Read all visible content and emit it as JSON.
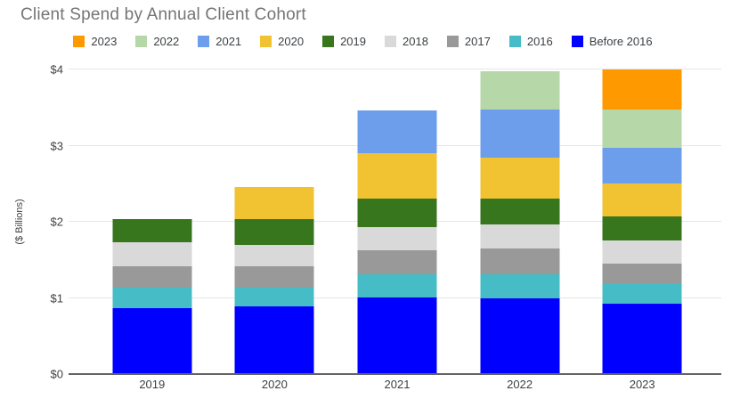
{
  "chart_data": {
    "type": "bar",
    "stacked": true,
    "title": "Client Spend by Annual Client Cohort",
    "xlabel": "",
    "ylabel": "($ Billions)",
    "categories": [
      "2019",
      "2020",
      "2021",
      "2022",
      "2023"
    ],
    "series": [
      {
        "name": "Before 2016",
        "color": "#0000FF",
        "values": [
          0.87,
          0.89,
          1.01,
          1.0,
          0.92
        ]
      },
      {
        "name": "2016",
        "color": "#46BDC6",
        "values": [
          0.26,
          0.25,
          0.3,
          0.31,
          0.27
        ]
      },
      {
        "name": "2017",
        "color": "#999999",
        "values": [
          0.29,
          0.28,
          0.32,
          0.34,
          0.26
        ]
      },
      {
        "name": "2018",
        "color": "#D9D9D9",
        "values": [
          0.31,
          0.28,
          0.3,
          0.32,
          0.31
        ]
      },
      {
        "name": "2019",
        "color": "#38761D",
        "values": [
          0.3,
          0.34,
          0.38,
          0.34,
          0.31
        ]
      },
      {
        "name": "2020",
        "color": "#F1C232",
        "values": [
          0.0,
          0.42,
          0.59,
          0.53,
          0.43
        ]
      },
      {
        "name": "2021",
        "color": "#6D9EEB",
        "values": [
          0.0,
          0.0,
          0.56,
          0.63,
          0.47
        ]
      },
      {
        "name": "2022",
        "color": "#B6D7A8",
        "values": [
          0.0,
          0.0,
          0.0,
          0.51,
          0.51
        ]
      },
      {
        "name": "2023",
        "color": "#FF9900",
        "values": [
          0.0,
          0.0,
          0.0,
          0.0,
          0.52
        ]
      }
    ],
    "totals": [
      2.03,
      2.46,
      3.46,
      3.98,
      4.0
    ],
    "ylim": [
      0,
      4
    ],
    "yticks": [
      {
        "value": 0,
        "label": "$0"
      },
      {
        "value": 1,
        "label": "$1"
      },
      {
        "value": 2,
        "label": "$2"
      },
      {
        "value": 3,
        "label": "$3"
      },
      {
        "value": 4,
        "label": "$4"
      }
    ],
    "grid": true,
    "legend_position": "top",
    "legend_order": "newest-first"
  }
}
